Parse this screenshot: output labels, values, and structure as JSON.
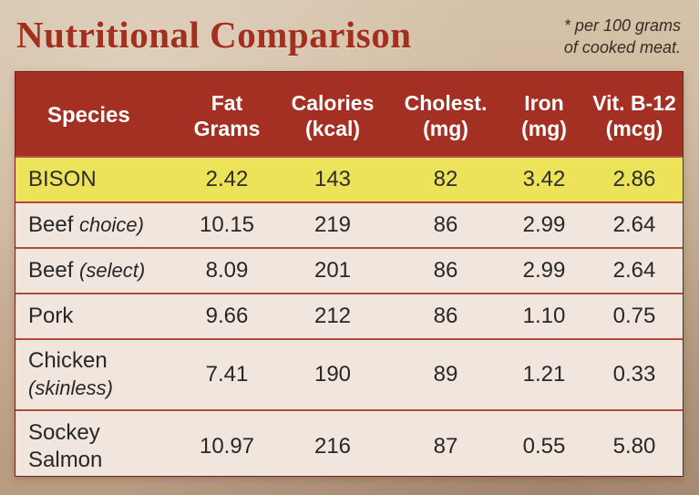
{
  "title": "Nutritional Comparison",
  "note_line1": "* per 100 grams",
  "note_line2": "of cooked meat.",
  "headers": {
    "species": "Species",
    "fat": "Fat",
    "fat_sub": "Grams",
    "calories": "Calories",
    "calories_sub": "(kcal)",
    "cholest": "Cholest.",
    "cholest_sub": "(mg)",
    "iron": "Iron",
    "iron_sub": "(mg)",
    "vit": "Vit. B-12",
    "vit_sub": "(mcg)"
  },
  "rows": [
    {
      "species_main": "BISON",
      "fat": "2.42",
      "calories": "143",
      "cholest": "82",
      "iron": "3.42",
      "vit": "2.86"
    },
    {
      "species_main": "Beef ",
      "species_sub": "choice)",
      "fat": "10.15",
      "calories": "219",
      "cholest": "86",
      "iron": "2.99",
      "vit": "2.64"
    },
    {
      "species_main": "Beef ",
      "species_sub": "(select)",
      "fat": "8.09",
      "calories": "201",
      "cholest": "86",
      "iron": "2.99",
      "vit": "2.64"
    },
    {
      "species_main": "Pork",
      "fat": "9.66",
      "calories": "212",
      "cholest": "86",
      "iron": "1.10",
      "vit": "0.75"
    },
    {
      "species_main": "Chicken",
      "species_sub": "(skinless)",
      "fat": "7.41",
      "calories": "190",
      "cholest": "89",
      "iron": "1.21",
      "vit": "0.33"
    },
    {
      "species_main": "Sockey",
      "species_sub": "Salmon",
      "fat": "10.97",
      "calories": "216",
      "cholest": "87",
      "iron": "0.55",
      "vit": "5.80"
    }
  ]
}
